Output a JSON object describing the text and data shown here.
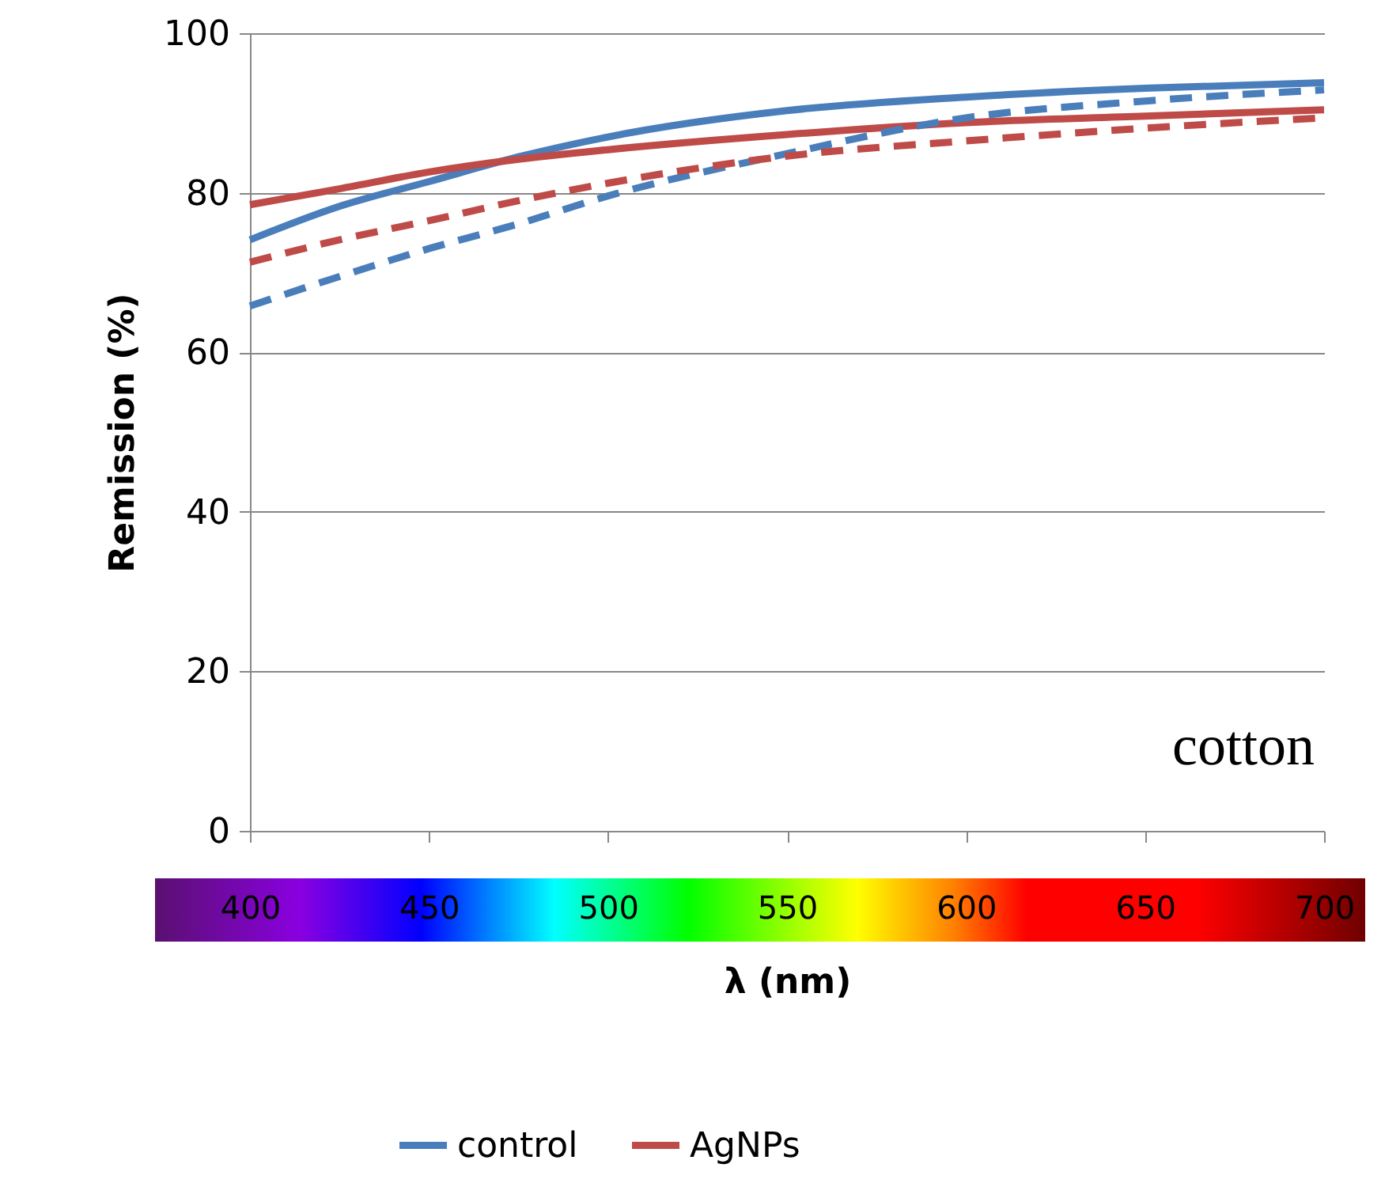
{
  "chart_data": {
    "type": "line",
    "xlabel": "λ (nm)",
    "ylabel": "Remission (%)",
    "annotations": [
      "cotton"
    ],
    "x": [
      400,
      425,
      450,
      475,
      500,
      550,
      600,
      650,
      700
    ],
    "xlim": [
      400,
      700
    ],
    "xticks": [
      400,
      450,
      500,
      550,
      600,
      650,
      700
    ],
    "ylim": [
      0,
      100
    ],
    "yticks": [
      0,
      20,
      40,
      60,
      80,
      100
    ],
    "grid": "y",
    "legend": "bottom",
    "line_style": "solid",
    "marker": "none",
    "series": [
      {
        "name": "control",
        "color": "#4a7ebb",
        "values": [
          74.1,
          78.3,
          81.4,
          84.5,
          87,
          90.3,
          92,
          93.1,
          93.8
        ]
      },
      {
        "name": "AgNPs",
        "color": "#be4b48",
        "values": [
          78.5,
          80.5,
          82.6,
          84.2,
          85.4,
          87.3,
          88.8,
          89.6,
          90.4
        ]
      },
      {
        "color": "#4a7ebb",
        "line_style": "dashed",
        "values": [
          65.8,
          69.5,
          73,
          76.1,
          79.6,
          84.9,
          89.4,
          91.5,
          92.9
        ]
      },
      {
        "color": "#be4b48",
        "line_style": "dashed",
        "values": [
          71.3,
          74.1,
          76.5,
          79,
          81.2,
          84.6,
          86.5,
          88.1,
          89.4
        ]
      }
    ]
  }
}
